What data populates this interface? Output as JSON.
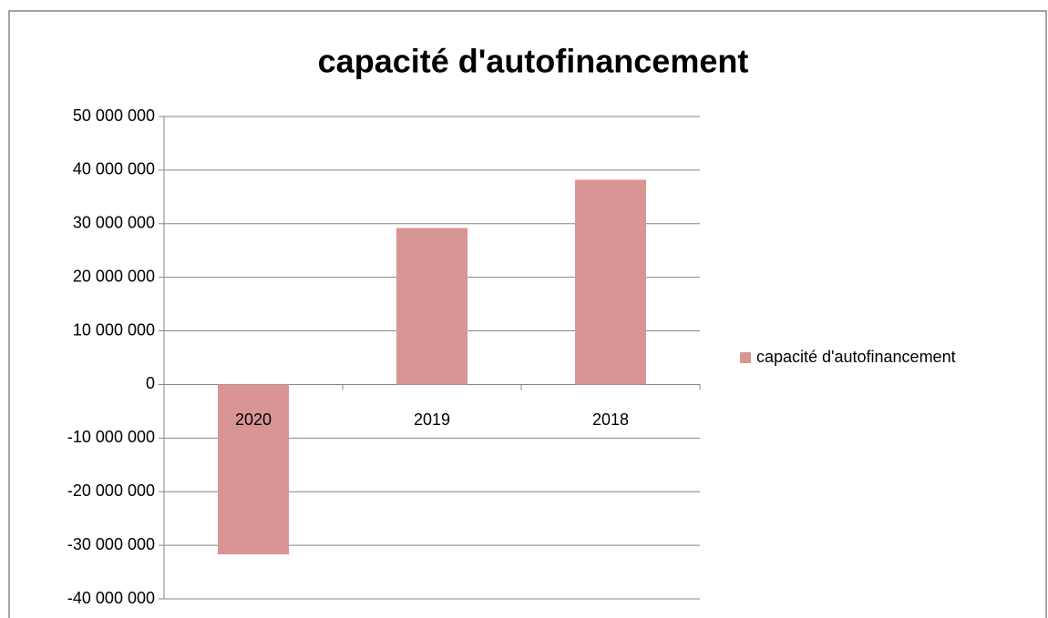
{
  "chart_data": {
    "type": "bar",
    "title": "capacité d'autofinancement",
    "categories": [
      "2020",
      "2019",
      "2018"
    ],
    "series": [
      {
        "name": "capacité d'autofinancement",
        "color": "#d99594",
        "values": [
          -31700000,
          29200000,
          38200000
        ]
      }
    ],
    "ylim": [
      -40000000,
      50000000
    ],
    "yticks": [
      {
        "value": -40000000,
        "label": "-40 000 000"
      },
      {
        "value": -30000000,
        "label": "-30 000 000"
      },
      {
        "value": -20000000,
        "label": "-20 000 000"
      },
      {
        "value": -10000000,
        "label": "-10 000 000"
      },
      0,
      {
        "value": 10000000,
        "label": "10 000 000"
      },
      {
        "value": 20000000,
        "label": "20 000 000"
      },
      {
        "value": 30000000,
        "label": "30 000 000"
      },
      {
        "value": 40000000,
        "label": "40 000 000"
      },
      {
        "value": 50000000,
        "label": "50 000 000"
      }
    ],
    "grid": true,
    "legend": "right"
  }
}
